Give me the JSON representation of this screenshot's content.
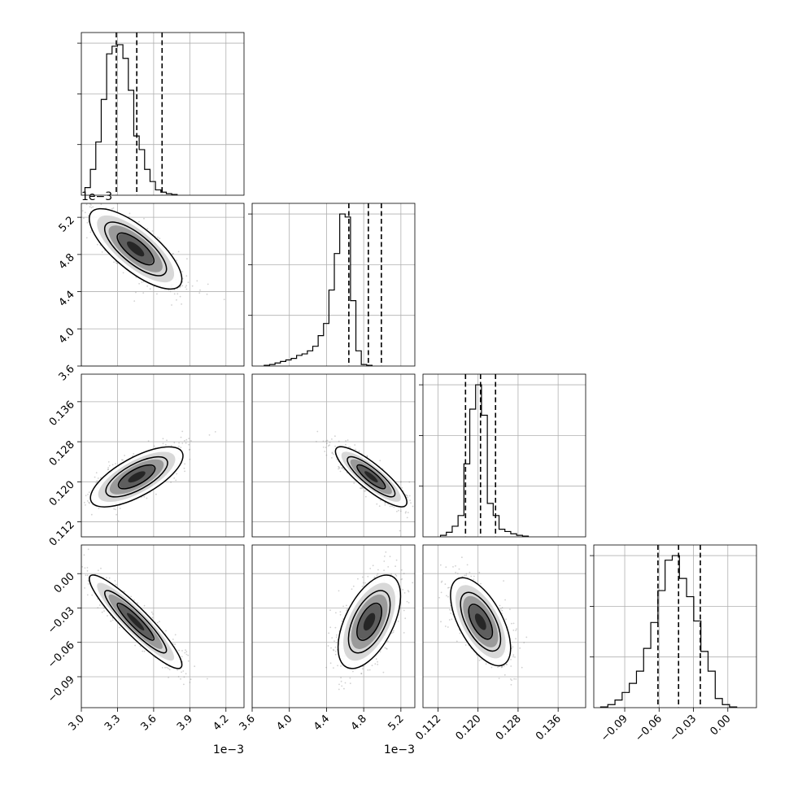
{
  "chart_data": {
    "type": "corner",
    "parameters": [
      {
        "range": [
          3.0,
          4.35
        ],
        "ticks": [
          "3.0",
          "3.3",
          "3.6",
          "3.9",
          "4.2"
        ],
        "tick_values": [
          3.0,
          3.3,
          3.6,
          3.9,
          4.2
        ],
        "offset_label": "1e−3",
        "quantiles": [
          3.29,
          3.46,
          3.67
        ],
        "histogram": {
          "start": 3.03,
          "bin_width": 0.045,
          "counts": [
            0.05,
            0.17,
            0.35,
            0.63,
            0.93,
            0.98,
            0.99,
            0.9,
            0.69,
            0.39,
            0.3,
            0.17,
            0.09,
            0.035,
            0.02,
            0.01,
            0.005
          ]
        }
      },
      {
        "range": [
          3.6,
          5.35
        ],
        "ticks": [
          "3.6",
          "4.0",
          "4.4",
          "4.8",
          "5.2"
        ],
        "tick_values": [
          3.6,
          4.0,
          4.4,
          4.8,
          5.2
        ],
        "offset_label": "1e−3",
        "quantiles": [
          4.64,
          4.85,
          4.99
        ],
        "histogram": {
          "start": 3.73,
          "bin_width": 0.058,
          "counts": [
            0.005,
            0.01,
            0.02,
            0.03,
            0.04,
            0.05,
            0.07,
            0.08,
            0.1,
            0.13,
            0.2,
            0.28,
            0.5,
            0.74,
            1.0,
            0.98,
            0.43,
            0.1,
            0.01,
            0.005
          ]
        }
      },
      {
        "range": [
          0.109,
          0.1415
        ],
        "ticks": [
          "0.112",
          "0.120",
          "0.128",
          "0.136"
        ],
        "tick_values": [
          0.112,
          0.12,
          0.128,
          0.136
        ],
        "quantiles": [
          0.1175,
          0.1205,
          0.1235
        ],
        "histogram": {
          "start": 0.1125,
          "bin_width": 0.00117,
          "counts": [
            0.01,
            0.03,
            0.07,
            0.14,
            0.48,
            0.84,
            1.0,
            0.8,
            0.22,
            0.14,
            0.05,
            0.035,
            0.02,
            0.01,
            0.005
          ]
        }
      },
      {
        "range": [
          -0.117,
          0.025
        ],
        "ticks": [
          "−0.09",
          "−0.06",
          "−0.03",
          "0.00"
        ],
        "tick_values": [
          -0.09,
          -0.06,
          -0.03,
          0.0
        ],
        "quantiles": [
          -0.061,
          -0.043,
          -0.024
        ],
        "histogram": {
          "start": -0.111,
          "bin_width": 0.00625,
          "counts": [
            0.005,
            0.02,
            0.05,
            0.1,
            0.16,
            0.24,
            0.39,
            0.56,
            0.77,
            0.97,
            1.0,
            0.85,
            0.73,
            0.57,
            0.37,
            0.24,
            0.06,
            0.02,
            0.005
          ]
        }
      }
    ],
    "pairs": [
      {
        "x": 0,
        "y": 1,
        "center": [
          3.45,
          4.86
        ],
        "spread": [
          0.16,
          0.18
        ],
        "corr": -0.75
      },
      {
        "x": 0,
        "y": 2,
        "center": [
          3.46,
          0.121
        ],
        "spread": [
          0.16,
          0.0025
        ],
        "corr": 0.7
      },
      {
        "x": 1,
        "y": 2,
        "center": [
          4.88,
          0.121
        ],
        "spread": [
          0.16,
          0.0025
        ],
        "corr": -0.85
      },
      {
        "x": 0,
        "y": 3,
        "center": [
          3.45,
          -0.042
        ],
        "spread": [
          0.16,
          0.017
        ],
        "corr": -0.92
      },
      {
        "x": 1,
        "y": 3,
        "center": [
          4.86,
          -0.042
        ],
        "spread": [
          0.14,
          0.017
        ],
        "corr": 0.55
      },
      {
        "x": 2,
        "y": 3,
        "center": [
          0.1205,
          -0.042
        ],
        "spread": [
          0.0025,
          0.016
        ],
        "corr": -0.6
      }
    ],
    "grid": true,
    "colors": {
      "ink": "#000000",
      "grid": "#b0b0b0",
      "points": "#7a7a7a"
    }
  }
}
